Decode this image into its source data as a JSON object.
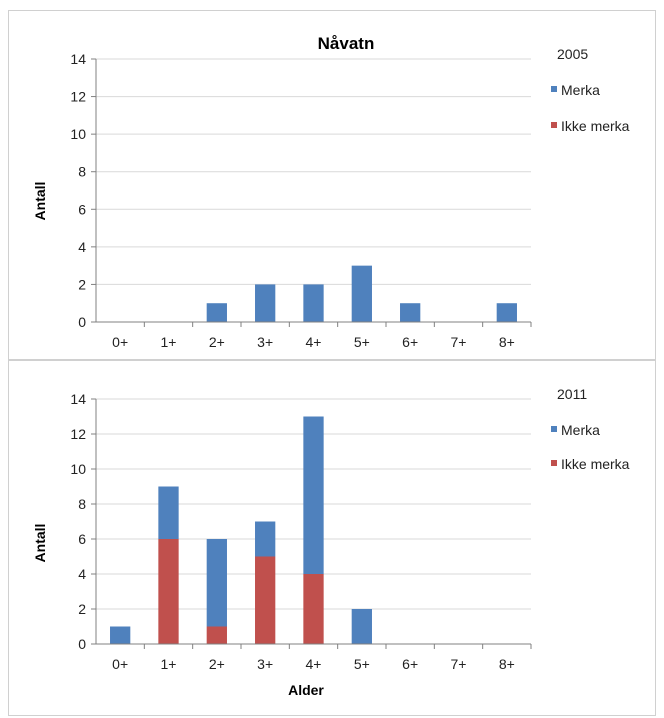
{
  "colors": {
    "merka": "#4f81bd",
    "ikke_merka": "#c0504d",
    "grid": "#d9d9d9",
    "axis": "#808080"
  },
  "chart_data": [
    {
      "type": "bar",
      "stacked": true,
      "title": "Nåvatn",
      "legend_title": "2005",
      "xlabel": "",
      "ylabel": "Antall",
      "ylim": [
        0,
        14
      ],
      "yticks": [
        0,
        2,
        4,
        6,
        8,
        10,
        12,
        14
      ],
      "grid": true,
      "legend_position": "right",
      "categories": [
        "0+",
        "1+",
        "2+",
        "3+",
        "4+",
        "5+",
        "6+",
        "7+",
        "8+"
      ],
      "series": [
        {
          "name": "Merka",
          "values": [
            0,
            0,
            1,
            2,
            2,
            3,
            1,
            0,
            1
          ]
        },
        {
          "name": "Ikke merka",
          "values": [
            0,
            0,
            0,
            0,
            0,
            0,
            0,
            0,
            0
          ]
        }
      ]
    },
    {
      "type": "bar",
      "stacked": true,
      "title": "",
      "legend_title": "2011",
      "xlabel": "Alder",
      "ylabel": "Antall",
      "ylim": [
        0,
        14
      ],
      "yticks": [
        0,
        2,
        4,
        6,
        8,
        10,
        12,
        14
      ],
      "grid": true,
      "legend_position": "right",
      "categories": [
        "0+",
        "1+",
        "2+",
        "3+",
        "4+",
        "5+",
        "6+",
        "7+",
        "8+"
      ],
      "series": [
        {
          "name": "Merka",
          "values": [
            1,
            3,
            5,
            2,
            9,
            2,
            0,
            0,
            0
          ]
        },
        {
          "name": "Ikke merka",
          "values": [
            0,
            6,
            1,
            5,
            4,
            0,
            0,
            0,
            0
          ]
        }
      ]
    }
  ]
}
